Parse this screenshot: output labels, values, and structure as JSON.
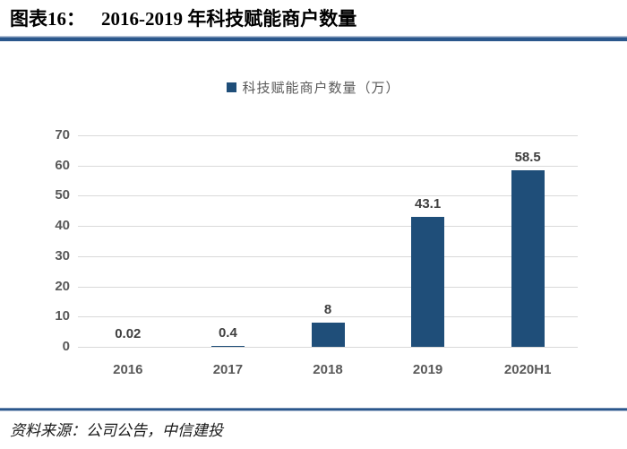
{
  "title": {
    "prefix": "图表16：",
    "text": "2016-2019 年科技赋能商户数量"
  },
  "legend": {
    "label": "科技赋能商户数量（万）"
  },
  "source": {
    "text": "资料来源：公司公告，中信建投"
  },
  "colors": {
    "bar": "#1f4e79",
    "gridline": "#d9d9d9",
    "axis_label": "#595959",
    "data_label": "#3f3f3f",
    "rule_dark": "#2a578c",
    "rule_light": "#b9c5d9"
  },
  "chart_data": {
    "type": "bar",
    "title": "图表16： 2016-2019 年科技赋能商户数量",
    "series_name": "科技赋能商户数量（万）",
    "categories": [
      "2016",
      "2017",
      "2018",
      "2019",
      "2020H1"
    ],
    "values": [
      0.02,
      0.4,
      8,
      43.1,
      58.5
    ],
    "value_labels": [
      "0.02",
      "0.4",
      "8",
      "43.1",
      "58.5"
    ],
    "xlabel": "",
    "ylabel": "",
    "ylim": [
      0,
      70
    ],
    "yticks": [
      0,
      10,
      20,
      30,
      40,
      50,
      60,
      70
    ],
    "grid": "horizontal",
    "legend_position": "top-center",
    "bar_color": "#1f4e79"
  }
}
